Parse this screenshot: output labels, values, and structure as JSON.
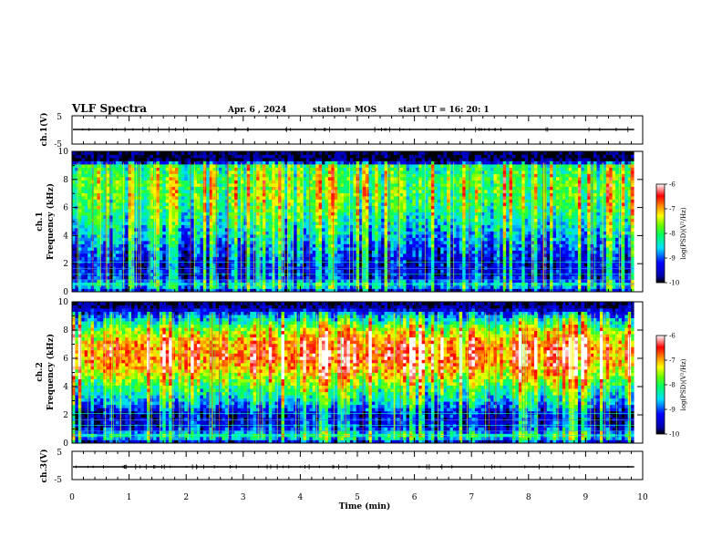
{
  "header": {
    "title": "VLF Spectra",
    "date": "Apr. 6  , 2024",
    "station": "station= MOS",
    "start": "start  UT  =   16: 20: 1"
  },
  "chart_data": [
    {
      "type": "line",
      "name": "ch1-voltage",
      "ylabel": "ch.1(V)",
      "ylim": [
        -5,
        5
      ],
      "yticks": [
        "5",
        "-5"
      ],
      "xlim": [
        0,
        10
      ],
      "baseline_value": 0,
      "color": "#000000"
    },
    {
      "type": "heatmap",
      "name": "ch1-spectrogram",
      "ylabel": [
        "ch.1",
        "Frequency  (kHz)"
      ],
      "ylim": [
        0,
        10
      ],
      "yticks": [
        "0",
        "2",
        "4",
        "6",
        "8",
        "10"
      ],
      "xlim": [
        0,
        10
      ],
      "data_end_min": 9.85,
      "colorbar": {
        "label": "log(PSD)(V²/Hz)",
        "ticks": [
          "-6",
          "-7",
          "-8",
          "-9",
          "-10"
        ],
        "range": [
          -10,
          -6
        ]
      },
      "band_profile_khz": [
        [
          0.0,
          -9.6
        ],
        [
          0.5,
          -8.4
        ],
        [
          1.0,
          -9.3
        ],
        [
          2.0,
          -9.4
        ],
        [
          3.0,
          -9.1
        ],
        [
          4.0,
          -8.7
        ],
        [
          5.0,
          -8.4
        ],
        [
          6.0,
          -8.1
        ],
        [
          7.0,
          -7.9
        ],
        [
          8.0,
          -7.9
        ],
        [
          9.0,
          -8.2
        ],
        [
          9.3,
          -9.9
        ],
        [
          10.0,
          -10.0
        ]
      ],
      "horizontal_lines_khz": [
        0.55,
        0.85,
        1.25,
        1.65,
        2.1
      ]
    },
    {
      "type": "heatmap",
      "name": "ch2-spectrogram",
      "ylabel": [
        "ch.2",
        "Frequency  (kHz)"
      ],
      "ylim": [
        0,
        10
      ],
      "yticks": [
        "0",
        "2",
        "4",
        "6",
        "8",
        "10"
      ],
      "xlim": [
        0,
        10
      ],
      "data_end_min": 9.85,
      "colorbar": {
        "label": "log(PSD)(V²/Hz)",
        "ticks": [
          "-6",
          "-7",
          "-8",
          "-9",
          "-10"
        ],
        "range": [
          -10,
          -6
        ]
      },
      "band_profile_khz": [
        [
          0.0,
          -9.7
        ],
        [
          0.5,
          -8.2
        ],
        [
          1.0,
          -9.2
        ],
        [
          1.5,
          -9.4
        ],
        [
          2.0,
          -9.5
        ],
        [
          3.0,
          -8.6
        ],
        [
          4.0,
          -8.0
        ],
        [
          5.0,
          -7.2
        ],
        [
          6.0,
          -6.7
        ],
        [
          7.0,
          -6.8
        ],
        [
          8.0,
          -7.6
        ],
        [
          9.0,
          -8.8
        ],
        [
          9.6,
          -9.7
        ],
        [
          10.0,
          -10.0
        ]
      ],
      "horizontal_lines_khz": [
        0.55,
        0.85,
        1.25,
        1.65,
        2.1
      ]
    },
    {
      "type": "line",
      "name": "ch3-voltage",
      "ylabel": "ch.3(V)",
      "ylim": [
        -5,
        5
      ],
      "yticks": [
        "5",
        "-5"
      ],
      "xlim": [
        0,
        10
      ],
      "baseline_value": 0,
      "color": "#000000",
      "xlabel": "Time  (min)",
      "xticks": [
        "0",
        "1",
        "2",
        "3",
        "4",
        "5",
        "6",
        "7",
        "8",
        "9",
        "10"
      ]
    }
  ]
}
